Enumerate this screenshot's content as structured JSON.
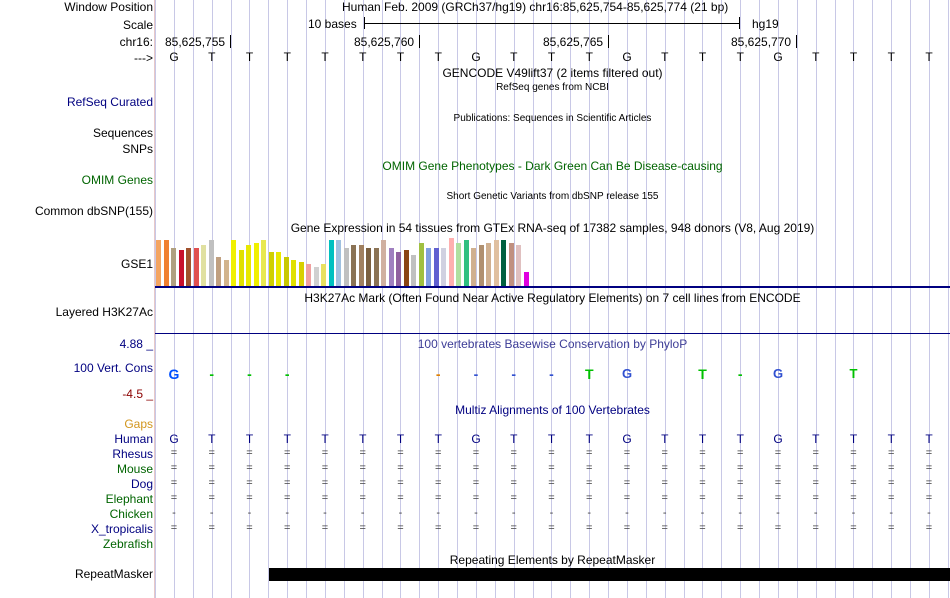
{
  "ruler": {
    "window_position_label": "Window Position",
    "window_position_value": "Human Feb. 2009 (GRCh37/hg19)   chr16:85,625,754-85,625,774 (21 bp)",
    "scale_label": "Scale",
    "scale_value": "10 bases",
    "scale_assembly": "hg19",
    "chrom_label": "chr16:",
    "coord_ticks": [
      "85,625,755",
      "85,625,760",
      "85,625,765",
      "85,625,770"
    ],
    "strand_arrow": "--->",
    "sequence": [
      "G",
      "T",
      "T",
      "T",
      "T",
      "T",
      "T",
      "T",
      "G",
      "T",
      "T",
      "T",
      "G",
      "T",
      "T",
      "T",
      "G",
      "T",
      "T",
      "T",
      "T"
    ]
  },
  "tracks": {
    "gencode_title": "GENCODE V49lift37 (2 items filtered out)",
    "refseq_label": "RefSeq Curated",
    "refseq_title": "RefSeq genes from NCBI",
    "sequences_label": "Sequences",
    "sequences_title": "Publications: Sequences in Scientific Articles",
    "snps_label": "SNPs",
    "omim_title": "OMIM Gene Phenotypes - Dark Green Can Be Disease-causing",
    "omim_label": "OMIM Genes",
    "dbsnp_title": "Short Genetic Variants from dbSNP release 155",
    "dbsnp_label": "Common dbSNP(155)",
    "gtex_title": "Gene Expression in 54 tissues from GTEx RNA-seq of 17382 samples, 948 donors (V8, Aug 2019)",
    "gse_label": "GSE1",
    "h3k27ac_title": "H3K27Ac Mark (Often Found Near Active Regulatory Elements) on 7 cell lines from ENCODE",
    "h3k27ac_label": "Layered H3K27Ac",
    "phylop_max": "4.88 _",
    "phylop_title": "100 vertebrates Basewise Conservation by PhyloP",
    "phylop_label": "100 Vert. Cons",
    "phylop_min": "-4.5 _",
    "multiz_title": "Multiz Alignments of 100 Vertebrates",
    "gaps_label": "Gaps",
    "repeat_title": "Repeating Elements by RepeatMasker",
    "repeat_label": "RepeatMasker"
  },
  "species": [
    {
      "name": "Human",
      "color": "#000080"
    },
    {
      "name": "Rhesus",
      "color": "#000080"
    },
    {
      "name": "Mouse",
      "color": "#006400"
    },
    {
      "name": "Dog",
      "color": "#000080"
    },
    {
      "name": "Elephant",
      "color": "#006400"
    },
    {
      "name": "Chicken",
      "color": "#006400"
    },
    {
      "name": "X_tropicalis",
      "color": "#000080"
    },
    {
      "name": "Zebrafish",
      "color": "#006400"
    }
  ],
  "alignment_symbols": {
    "Rhesus": "=",
    "Mouse": "=",
    "Dog": "=",
    "Elephant": "=",
    "Chicken": "-",
    "X_tropicalis": "=",
    "Zebrafish": ""
  },
  "gtex_colors": [
    "#f4a460",
    "#f08030",
    "#b0a080",
    "#c8102e",
    "#a0522d",
    "#e05050",
    "#e0e0a0",
    "#c0c0c0",
    "#c0a080",
    "#d2b48c",
    "#f0f000",
    "#e0e000",
    "#e8e800",
    "#f0f000",
    "#e8e850",
    "#d0d000",
    "#e8e800",
    "#c8c800",
    "#e0e000",
    "#d8d000",
    "#f0a0a0",
    "#d0d0d0",
    "#e8e060",
    "#00c0c0",
    "#a0c0e0",
    "#c0c0c0",
    "#8b7355",
    "#a08060",
    "#7b6040",
    "#8b7355",
    "#d0b0a0",
    "#a080c0",
    "#9060a0",
    "#8b4513",
    "#c0c0c0",
    "#a0c040",
    "#80a0e0",
    "#6060d0",
    "#d0d0e0",
    "#ffb0b0",
    "#b0e0a0",
    "#30c080",
    "#d0b090",
    "#b09070",
    "#d0b090",
    "#e0c0a0",
    "#006040",
    "#c09080",
    "#e0c0c0",
    "#e000e0"
  ],
  "gtex_levels": [
    0.95,
    0.95,
    0.8,
    0.75,
    0.8,
    0.8,
    0.85,
    0.95,
    0.6,
    0.55,
    0.95,
    0.75,
    0.85,
    0.9,
    0.95,
    0.7,
    0.7,
    0.6,
    0.55,
    0.5,
    0.45,
    0.4,
    0.45,
    0.95,
    0.95,
    0.8,
    0.85,
    0.85,
    0.8,
    0.8,
    0.95,
    0.8,
    0.7,
    0.75,
    0.65,
    0.9,
    0.8,
    0.8,
    0.8,
    1.0,
    0.9,
    0.95,
    0.8,
    0.85,
    0.9,
    0.95,
    0.95,
    0.9,
    0.85,
    0.3
  ]
}
